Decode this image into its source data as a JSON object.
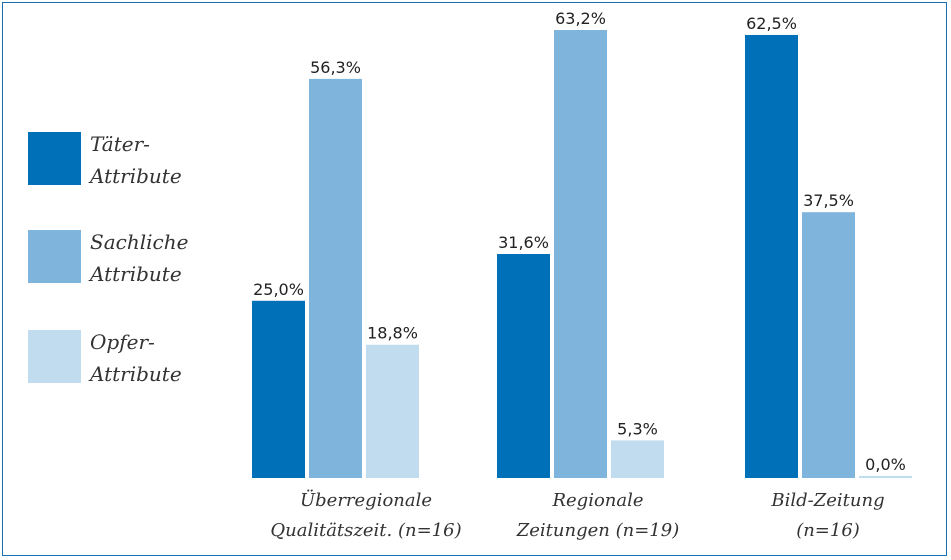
{
  "chart_data": {
    "type": "bar",
    "categories": [
      [
        "Überregionale",
        "Qualitätszeit. (n=16)"
      ],
      [
        "Regionale",
        "Zeitungen (n=19)"
      ],
      [
        "Bild-Zeitung",
        "(n=16)"
      ]
    ],
    "series": [
      {
        "name": [
          "Täter-",
          "Attribute"
        ],
        "color": "#0070b8",
        "values": [
          25.0,
          31.6,
          62.5
        ]
      },
      {
        "name": [
          "Sachliche",
          "Attribute"
        ],
        "color": "#7fb5dd",
        "values": [
          56.3,
          63.2,
          37.5
        ]
      },
      {
        "name": [
          "Opfer-",
          "Attribute"
        ],
        "color": "#c0dcee",
        "values": [
          18.8,
          5.3,
          0.0
        ]
      }
    ],
    "data_labels": [
      [
        "25,0%",
        "31,6%",
        "62,5%"
      ],
      [
        "56,3%",
        "63,2%",
        "37,5%"
      ],
      [
        "18,8%",
        "5,3%",
        "0,0%"
      ]
    ],
    "ylim": [
      0,
      63.2
    ],
    "legend_position": "left",
    "grid": false
  }
}
